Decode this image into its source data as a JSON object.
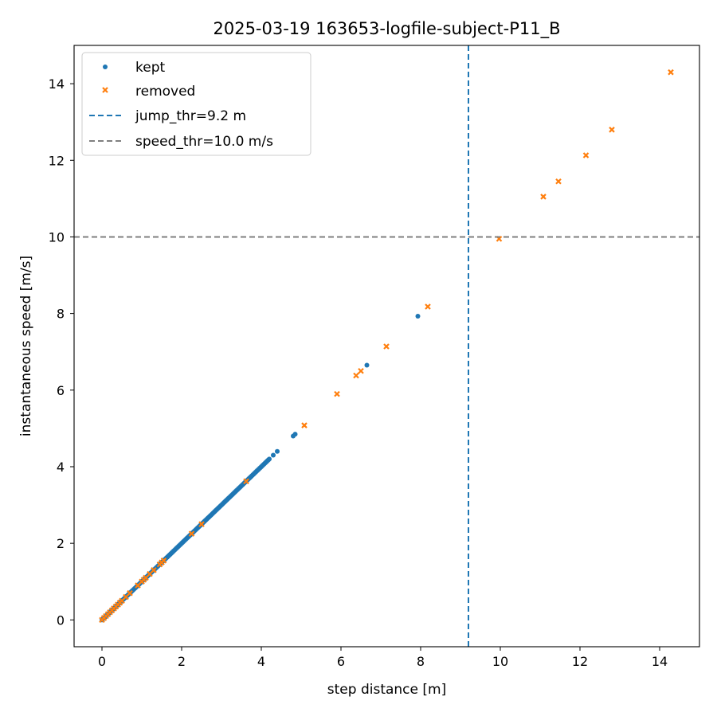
{
  "chart_data": {
    "type": "scatter",
    "title": "2025-03-19 163653-logfile-subject-P11_B",
    "xlabel": "step distance [m]",
    "ylabel": "instantaneous speed [m/s]",
    "xlim": [
      -0.7,
      15.0
    ],
    "ylim": [
      -0.7,
      15.0
    ],
    "xticks": [
      0,
      2,
      4,
      6,
      8,
      10,
      12,
      14
    ],
    "yticks": [
      0,
      2,
      4,
      6,
      8,
      10,
      12,
      14
    ],
    "grid": false,
    "legend_position": "top-left",
    "series": [
      {
        "name": "kept",
        "marker": "circle",
        "color": "#1f77b4",
        "dense_range": [
          0.0,
          4.2
        ],
        "points": [
          [
            4.3,
            4.3
          ],
          [
            4.4,
            4.4
          ],
          [
            4.8,
            4.8
          ],
          [
            4.85,
            4.85
          ],
          [
            6.65,
            6.65
          ],
          [
            7.93,
            7.93
          ]
        ]
      },
      {
        "name": "removed",
        "marker": "x",
        "color": "#ff7f0e",
        "points": [
          [
            0.0,
            0.0
          ],
          [
            0.05,
            0.05
          ],
          [
            0.1,
            0.1
          ],
          [
            0.15,
            0.15
          ],
          [
            0.2,
            0.2
          ],
          [
            0.25,
            0.25
          ],
          [
            0.3,
            0.3
          ],
          [
            0.35,
            0.35
          ],
          [
            0.4,
            0.4
          ],
          [
            0.45,
            0.45
          ],
          [
            0.5,
            0.5
          ],
          [
            0.6,
            0.6
          ],
          [
            0.7,
            0.7
          ],
          [
            0.9,
            0.9
          ],
          [
            1.0,
            1.0
          ],
          [
            1.05,
            1.05
          ],
          [
            1.1,
            1.1
          ],
          [
            1.2,
            1.2
          ],
          [
            1.3,
            1.3
          ],
          [
            1.45,
            1.45
          ],
          [
            1.5,
            1.5
          ],
          [
            1.55,
            1.55
          ],
          [
            2.25,
            2.25
          ],
          [
            2.5,
            2.5
          ],
          [
            3.62,
            3.62
          ],
          [
            5.08,
            5.08
          ],
          [
            5.9,
            5.9
          ],
          [
            6.38,
            6.38
          ],
          [
            6.5,
            6.5
          ],
          [
            7.14,
            7.14
          ],
          [
            8.18,
            8.18
          ],
          [
            9.97,
            9.95
          ],
          [
            11.08,
            11.05
          ],
          [
            11.46,
            11.45
          ],
          [
            12.15,
            12.13
          ],
          [
            12.8,
            12.8
          ],
          [
            14.28,
            14.3
          ]
        ]
      }
    ],
    "reference_lines": [
      {
        "name": "jump_thr=9.2 m",
        "orientation": "vertical",
        "value": 9.2,
        "color": "#1f77b4",
        "style": "dashed"
      },
      {
        "name": "speed_thr=10.0 m/s",
        "orientation": "horizontal",
        "value": 10.0,
        "color": "#7f7f7f",
        "style": "dashed"
      }
    ]
  }
}
